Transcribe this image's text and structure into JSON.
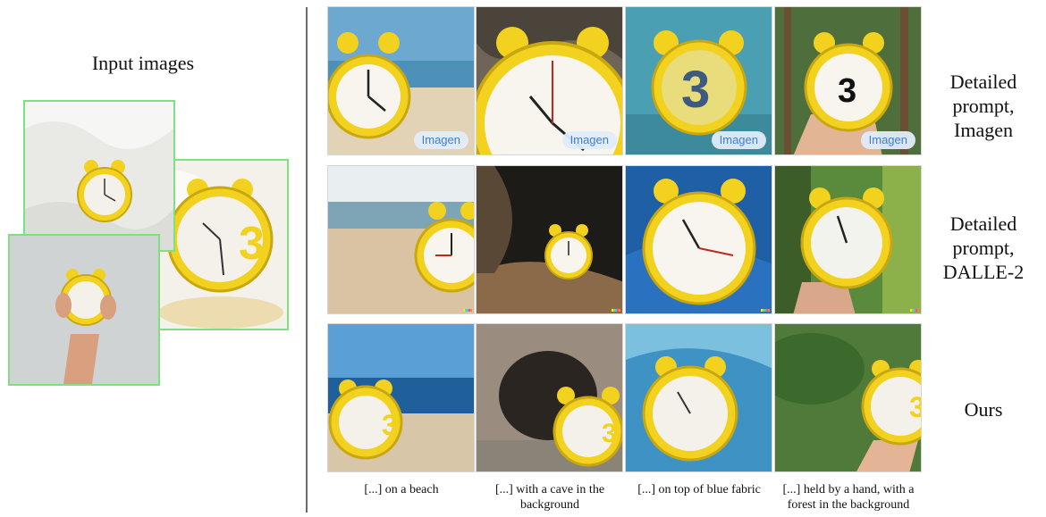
{
  "input_title": "Input images",
  "badge_label": "Imagen",
  "row_labels": [
    "Detailed prompt, Imagen",
    "Detailed prompt, DALLE-2",
    "Ours"
  ],
  "captions": [
    "[...] on a beach",
    "[...] with a cave in the background",
    "[...] on top of blue fabric",
    "[...] held by a hand, with a forest in the background"
  ],
  "colors": {
    "input_border": "#7ee07e",
    "clock_yellow": "#f2d21f",
    "badge_text": "#3b7fd6",
    "divider": "#6a6a6a"
  }
}
